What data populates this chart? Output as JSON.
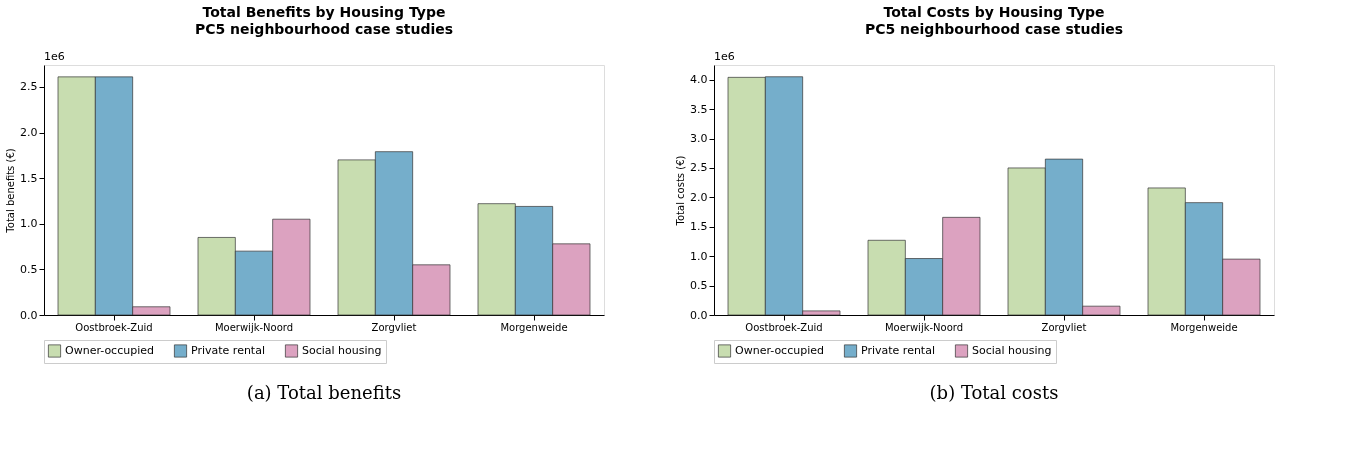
{
  "chart_data": [
    {
      "type": "bar",
      "title": "Total Benefits by Housing Type",
      "subtitle": "PC5 neighbourhood case studies",
      "ylabel": "Total benefits (€)",
      "categories": [
        "Oostbroek-Zuid",
        "Moerwijk-Noord",
        "Zorgvliet",
        "Morgenweide"
      ],
      "series": [
        {
          "name": "Owner-occupied",
          "color": "#c8ddb0",
          "values": [
            2.61,
            0.85,
            1.7,
            1.22
          ]
        },
        {
          "name": "Private rental",
          "color": "#75aecb",
          "values": [
            2.61,
            0.7,
            1.79,
            1.19
          ]
        },
        {
          "name": "Social housing",
          "color": "#dca2c0",
          "values": [
            0.09,
            1.05,
            0.55,
            0.78
          ]
        }
      ],
      "ylim": [
        0,
        2.74
      ],
      "yticks": [
        {
          "value": 0,
          "label": "0.0"
        },
        {
          "value": 0.5,
          "label": "0.5"
        },
        {
          "value": 1,
          "label": "1.0"
        },
        {
          "value": 1.5,
          "label": "1.5"
        },
        {
          "value": 2,
          "label": "2.0"
        },
        {
          "value": 2.5,
          "label": "2.5"
        }
      ],
      "legend": "bottom",
      "annotations": [
        "1e6",
        "(a) Total benefits"
      ]
    },
    {
      "type": "bar",
      "title": "Total Costs by Housing Type",
      "subtitle": "PC5 neighbourhood case studies",
      "ylabel": "Total costs (€)",
      "categories": [
        "Oostbroek-Zuid",
        "Moerwijk-Noord",
        "Zorgvliet",
        "Morgenweide"
      ],
      "series": [
        {
          "name": "Owner-occupied",
          "color": "#c8ddb0",
          "values": [
            4.04,
            1.27,
            2.5,
            2.16
          ]
        },
        {
          "name": "Private rental",
          "color": "#75aecb",
          "values": [
            4.05,
            0.96,
            2.65,
            1.91
          ]
        },
        {
          "name": "Social housing",
          "color": "#dca2c0",
          "values": [
            0.07,
            1.66,
            0.15,
            0.95
          ]
        }
      ],
      "ylim": [
        0,
        4.25
      ],
      "yticks": [
        {
          "value": 0,
          "label": "0.0"
        },
        {
          "value": 0.5,
          "label": "0.5"
        },
        {
          "value": 1,
          "label": "1.0"
        },
        {
          "value": 1.5,
          "label": "1.5"
        },
        {
          "value": 2,
          "label": "2.0"
        },
        {
          "value": 2.5,
          "label": "2.5"
        },
        {
          "value": 3,
          "label": "3.0"
        },
        {
          "value": 3.5,
          "label": "3.5"
        },
        {
          "value": 4,
          "label": "4.0"
        }
      ],
      "legend": "bottom",
      "annotations": [
        "1e6",
        "(b) Total costs"
      ]
    }
  ]
}
